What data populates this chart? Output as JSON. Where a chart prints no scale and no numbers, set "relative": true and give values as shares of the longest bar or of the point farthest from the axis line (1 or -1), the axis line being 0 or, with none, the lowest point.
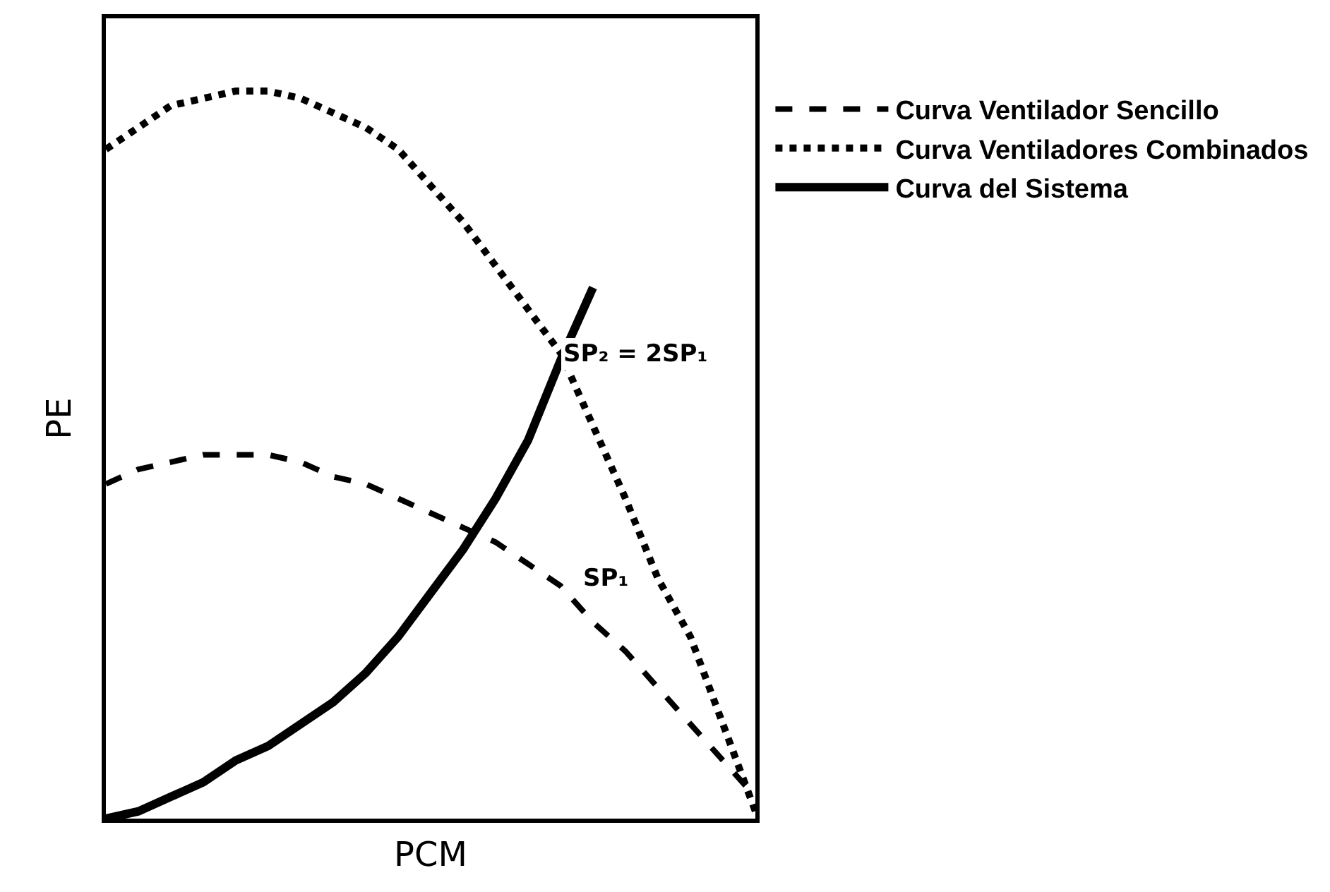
{
  "chart_data": {
    "type": "line",
    "xlabel": "PCM",
    "ylabel": "PE",
    "relative": true,
    "categories": [
      null,
      null,
      null,
      null,
      null,
      null,
      null,
      null,
      null,
      null,
      null,
      null,
      null,
      null,
      null,
      null,
      null,
      null,
      null,
      null,
      null
    ],
    "legend": "right",
    "tick_labels": false,
    "series": [
      {
        "name": "Curva Ventilador Sencillo",
        "color": "#000000",
        "line_style": "dashed",
        "values": [
          0.46,
          0.48,
          0.49,
          0.5,
          0.5,
          0.5,
          0.49,
          0.47,
          0.46,
          0.44,
          0.42,
          0.4,
          0.38,
          0.35,
          0.32,
          0.27,
          0.23,
          0.18,
          0.13,
          0.08,
          0.03
        ]
      },
      {
        "name": "Curva Ventiladores Combinados",
        "color": "#000000",
        "line_style": "dotted",
        "values": [
          0.92,
          0.95,
          0.98,
          0.99,
          1,
          1,
          0.99,
          0.97,
          0.95,
          0.92,
          0.87,
          0.82,
          0.76,
          0.7,
          0.64,
          0.54,
          0.44,
          0.33,
          0.25,
          0.13,
          0.01
        ]
      },
      {
        "name": "Curva del Sistema",
        "color": "#000000",
        "line_style": "solid",
        "values": [
          0,
          0.01,
          0.03,
          0.05,
          0.08,
          0.1,
          0.13,
          0.16,
          0.2,
          0.25,
          0.31,
          0.37,
          0.44,
          0.52,
          0.63,
          0.73,
          null,
          null,
          null,
          null,
          null
        ]
      }
    ],
    "annotations": [
      "SP₂ = 2SP₁",
      "SP₁"
    ]
  }
}
